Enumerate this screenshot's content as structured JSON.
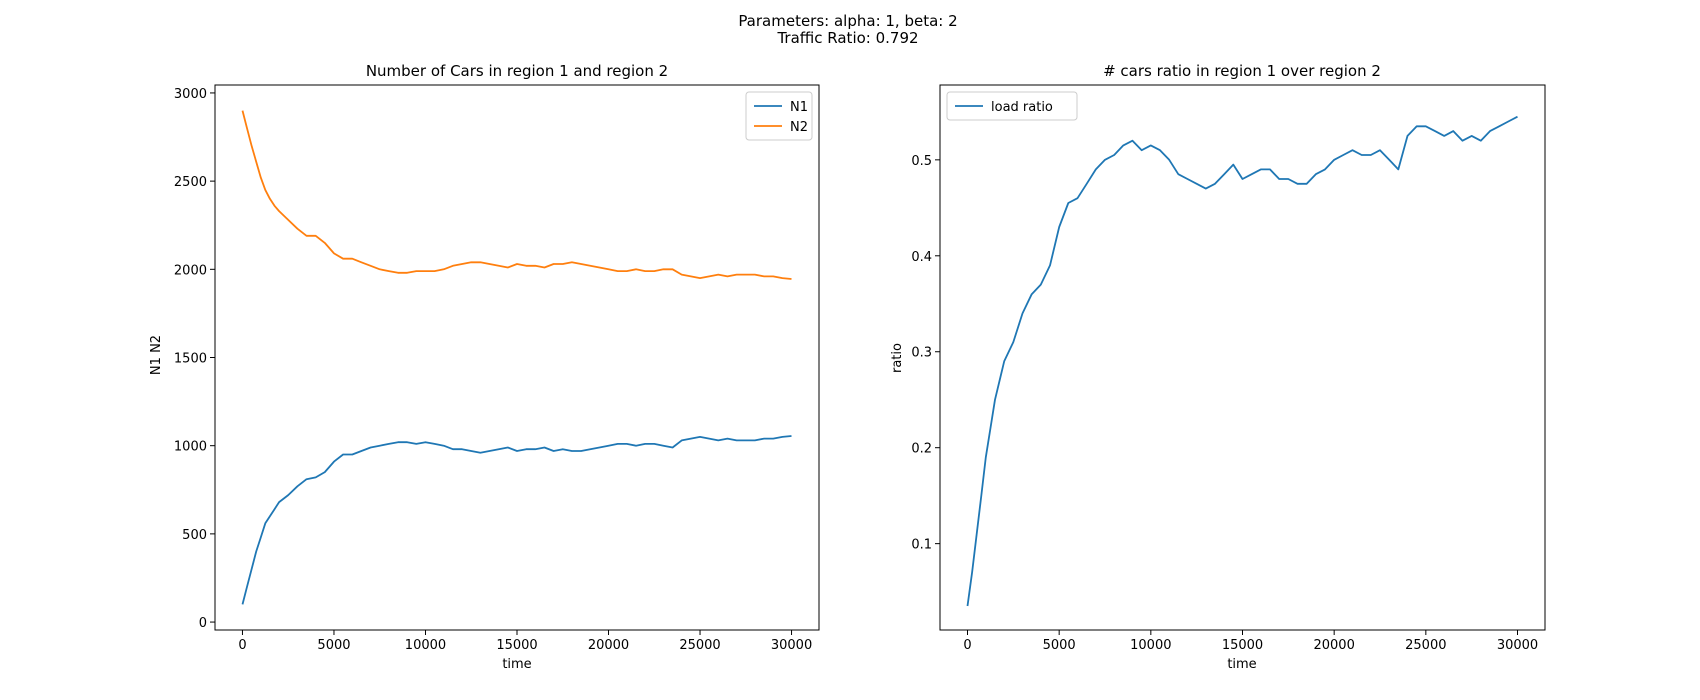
{
  "figure": {
    "suptitle_line1": "Parameters: alpha: 1, beta: 2",
    "suptitle_line2": "Traffic Ratio: 0.792"
  },
  "chart_data": [
    {
      "type": "line",
      "title": "Number of Cars in region 1 and region 2",
      "xlabel": "time",
      "ylabel": "N1 N2",
      "xlim": [
        -1500,
        31500
      ],
      "ylim": [
        -45,
        3045
      ],
      "xticks": [
        0,
        5000,
        10000,
        15000,
        20000,
        25000,
        30000
      ],
      "yticks": [
        0,
        500,
        1000,
        1500,
        2000,
        2500,
        3000
      ],
      "grid": false,
      "legend": "top-right",
      "series": [
        {
          "name": "N1",
          "color": "#1f77b4",
          "x": [
            0,
            250,
            500,
            750,
            1000,
            1250,
            1500,
            1750,
            2000,
            2500,
            3000,
            3500,
            4000,
            4500,
            5000,
            5500,
            6000,
            6500,
            7000,
            7500,
            8000,
            8500,
            9000,
            9500,
            10000,
            10500,
            11000,
            11500,
            12000,
            12500,
            13000,
            13500,
            14000,
            14500,
            15000,
            15500,
            16000,
            16500,
            17000,
            17500,
            18000,
            18500,
            19000,
            19500,
            20000,
            20500,
            21000,
            21500,
            22000,
            22500,
            23000,
            23500,
            24000,
            24500,
            25000,
            25500,
            26000,
            26500,
            27000,
            27500,
            28000,
            28500,
            29000,
            29500,
            30000
          ],
          "y": [
            100,
            200,
            300,
            400,
            480,
            560,
            600,
            640,
            680,
            720,
            770,
            810,
            820,
            850,
            910,
            950,
            950,
            970,
            990,
            1000,
            1010,
            1020,
            1020,
            1010,
            1020,
            1010,
            1000,
            980,
            980,
            970,
            960,
            970,
            980,
            990,
            970,
            980,
            980,
            990,
            970,
            980,
            970,
            970,
            980,
            990,
            1000,
            1010,
            1010,
            1000,
            1010,
            1010,
            1000,
            990,
            1030,
            1040,
            1050,
            1040,
            1030,
            1040,
            1030,
            1030,
            1030,
            1040,
            1040,
            1050,
            1055
          ]
        },
        {
          "name": "N2",
          "color": "#ff7f0e",
          "x": [
            0,
            250,
            500,
            750,
            1000,
            1250,
            1500,
            1750,
            2000,
            2500,
            3000,
            3500,
            4000,
            4500,
            5000,
            5500,
            6000,
            6500,
            7000,
            7500,
            8000,
            8500,
            9000,
            9500,
            10000,
            10500,
            11000,
            11500,
            12000,
            12500,
            13000,
            13500,
            14000,
            14500,
            15000,
            15500,
            16000,
            16500,
            17000,
            17500,
            18000,
            18500,
            19000,
            19500,
            20000,
            20500,
            21000,
            21500,
            22000,
            22500,
            23000,
            23500,
            24000,
            24500,
            25000,
            25500,
            26000,
            26500,
            27000,
            27500,
            28000,
            28500,
            29000,
            29500,
            30000
          ],
          "y": [
            2900,
            2800,
            2700,
            2610,
            2520,
            2450,
            2400,
            2360,
            2330,
            2280,
            2230,
            2190,
            2190,
            2150,
            2090,
            2060,
            2060,
            2040,
            2020,
            2000,
            1990,
            1980,
            1980,
            1990,
            1990,
            1990,
            2000,
            2020,
            2030,
            2040,
            2040,
            2030,
            2020,
            2010,
            2030,
            2020,
            2020,
            2010,
            2030,
            2030,
            2040,
            2030,
            2020,
            2010,
            2000,
            1990,
            1990,
            2000,
            1990,
            1990,
            2000,
            2000,
            1970,
            1960,
            1950,
            1960,
            1970,
            1960,
            1970,
            1970,
            1970,
            1960,
            1960,
            1950,
            1945
          ]
        }
      ]
    },
    {
      "type": "line",
      "title": "# cars ratio in region 1 over region 2",
      "xlabel": "time",
      "ylabel": "ratio",
      "xlim": [
        -1500,
        31500
      ],
      "ylim": [
        0.01,
        0.578
      ],
      "xticks": [
        0,
        5000,
        10000,
        15000,
        20000,
        25000,
        30000
      ],
      "yticks": [
        0.1,
        0.2,
        0.3,
        0.4,
        0.5
      ],
      "grid": false,
      "legend": "top-left",
      "series": [
        {
          "name": "load ratio",
          "color": "#1f77b4",
          "x": [
            0,
            250,
            500,
            750,
            1000,
            1250,
            1500,
            1750,
            2000,
            2500,
            3000,
            3500,
            4000,
            4500,
            5000,
            5500,
            6000,
            6500,
            7000,
            7500,
            8000,
            8500,
            9000,
            9500,
            10000,
            10500,
            11000,
            11500,
            12000,
            12500,
            13000,
            13500,
            14000,
            14500,
            15000,
            15500,
            16000,
            16500,
            17000,
            17500,
            18000,
            18500,
            19000,
            19500,
            20000,
            20500,
            21000,
            21500,
            22000,
            22500,
            23000,
            23500,
            24000,
            24500,
            25000,
            25500,
            26000,
            26500,
            27000,
            27500,
            28000,
            28500,
            29000,
            29500,
            30000
          ],
          "y": [
            0.035,
            0.07,
            0.11,
            0.15,
            0.19,
            0.22,
            0.25,
            0.27,
            0.29,
            0.31,
            0.34,
            0.36,
            0.37,
            0.39,
            0.43,
            0.455,
            0.46,
            0.475,
            0.49,
            0.5,
            0.505,
            0.515,
            0.52,
            0.51,
            0.515,
            0.51,
            0.5,
            0.485,
            0.48,
            0.475,
            0.47,
            0.475,
            0.485,
            0.495,
            0.48,
            0.485,
            0.49,
            0.49,
            0.48,
            0.48,
            0.475,
            0.475,
            0.485,
            0.49,
            0.5,
            0.505,
            0.51,
            0.505,
            0.505,
            0.51,
            0.5,
            0.49,
            0.525,
            0.535,
            0.535,
            0.53,
            0.525,
            0.53,
            0.52,
            0.525,
            0.52,
            0.53,
            0.535,
            0.54,
            0.545
          ]
        }
      ]
    }
  ]
}
